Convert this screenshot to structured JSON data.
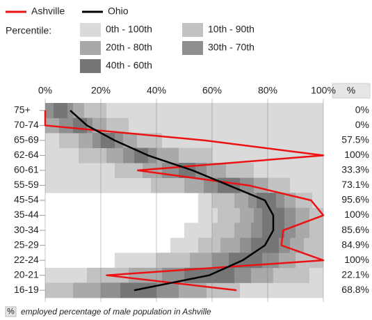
{
  "chart_data": {
    "type": "percentile-bands",
    "legend_label": "Percentile:",
    "categories": [
      "75+",
      "70-74",
      "65-69",
      "62-64",
      "60-61",
      "55-59",
      "45-54",
      "35-44",
      "30-34",
      "25-29",
      "22-24",
      "20-21",
      "16-19"
    ],
    "xlim": [
      0,
      100
    ],
    "xticks": [
      {
        "value": 0,
        "label": "0%"
      },
      {
        "value": 20,
        "label": "20%"
      },
      {
        "value": 40,
        "label": "40%"
      },
      {
        "value": 60,
        "label": "60%"
      },
      {
        "value": 80,
        "label": "80%"
      },
      {
        "value": 100,
        "label": "100%"
      }
    ],
    "grid": true,
    "value_column_header": "%",
    "bands": [
      {
        "name": "0th - 100th",
        "color": "#dadada",
        "low": [
          0,
          0,
          0,
          0,
          0,
          0,
          55,
          55,
          50,
          45,
          25,
          0,
          0
        ],
        "high": [
          100,
          100,
          100,
          100,
          100,
          100,
          100,
          100,
          100,
          100,
          100,
          100,
          100
        ]
      },
      {
        "name": "10th - 90th",
        "color": "#c2c2c2",
        "low": [
          0,
          0,
          5,
          12,
          25,
          38,
          60,
          62,
          60,
          55,
          40,
          15,
          0
        ],
        "high": [
          22,
          30,
          42,
          60,
          75,
          88,
          96,
          100,
          100,
          100,
          100,
          95,
          70
        ]
      },
      {
        "name": "20th - 80th",
        "color": "#a9a9a9",
        "low": [
          0,
          0,
          12,
          22,
          35,
          50,
          68,
          70,
          68,
          63,
          52,
          30,
          10
        ],
        "high": [
          14,
          22,
          33,
          48,
          65,
          80,
          90,
          95,
          95,
          93,
          90,
          82,
          58
        ]
      },
      {
        "name": "30th - 70th",
        "color": "#8f8f8f",
        "low": [
          0,
          5,
          17,
          28,
          42,
          57,
          73,
          75,
          74,
          70,
          60,
          42,
          20
        ],
        "high": [
          10,
          17,
          28,
          40,
          58,
          75,
          86,
          90,
          90,
          88,
          84,
          74,
          48
        ]
      },
      {
        "name": "40th - 60th",
        "color": "#767676",
        "low": [
          3,
          10,
          20,
          32,
          48,
          62,
          76,
          78,
          78,
          74,
          66,
          50,
          27
        ],
        "high": [
          8,
          15,
          25,
          37,
          54,
          70,
          83,
          86,
          86,
          84,
          78,
          68,
          40
        ]
      }
    ],
    "series": [
      {
        "name": "Ashville",
        "color": "#ee1111",
        "values": [
          0,
          0,
          57.5,
          100,
          33.3,
          73.1,
          95.6,
          100,
          85.6,
          84.9,
          100,
          22.1,
          68.8
        ],
        "value_labels": [
          "0%",
          "0%",
          "57.5%",
          "100%",
          "33.3%",
          "73.1%",
          "95.6%",
          "100%",
          "85.6%",
          "84.9%",
          "100%",
          "22.1%",
          "68.8%"
        ]
      },
      {
        "name": "Ohio",
        "color": "#000000",
        "values": [
          9,
          15,
          25,
          37,
          53,
          66,
          79,
          82,
          82,
          79,
          71,
          59,
          32
        ]
      }
    ],
    "footer_badge": "%",
    "footer": "employed percentage of male population in Ashville"
  }
}
